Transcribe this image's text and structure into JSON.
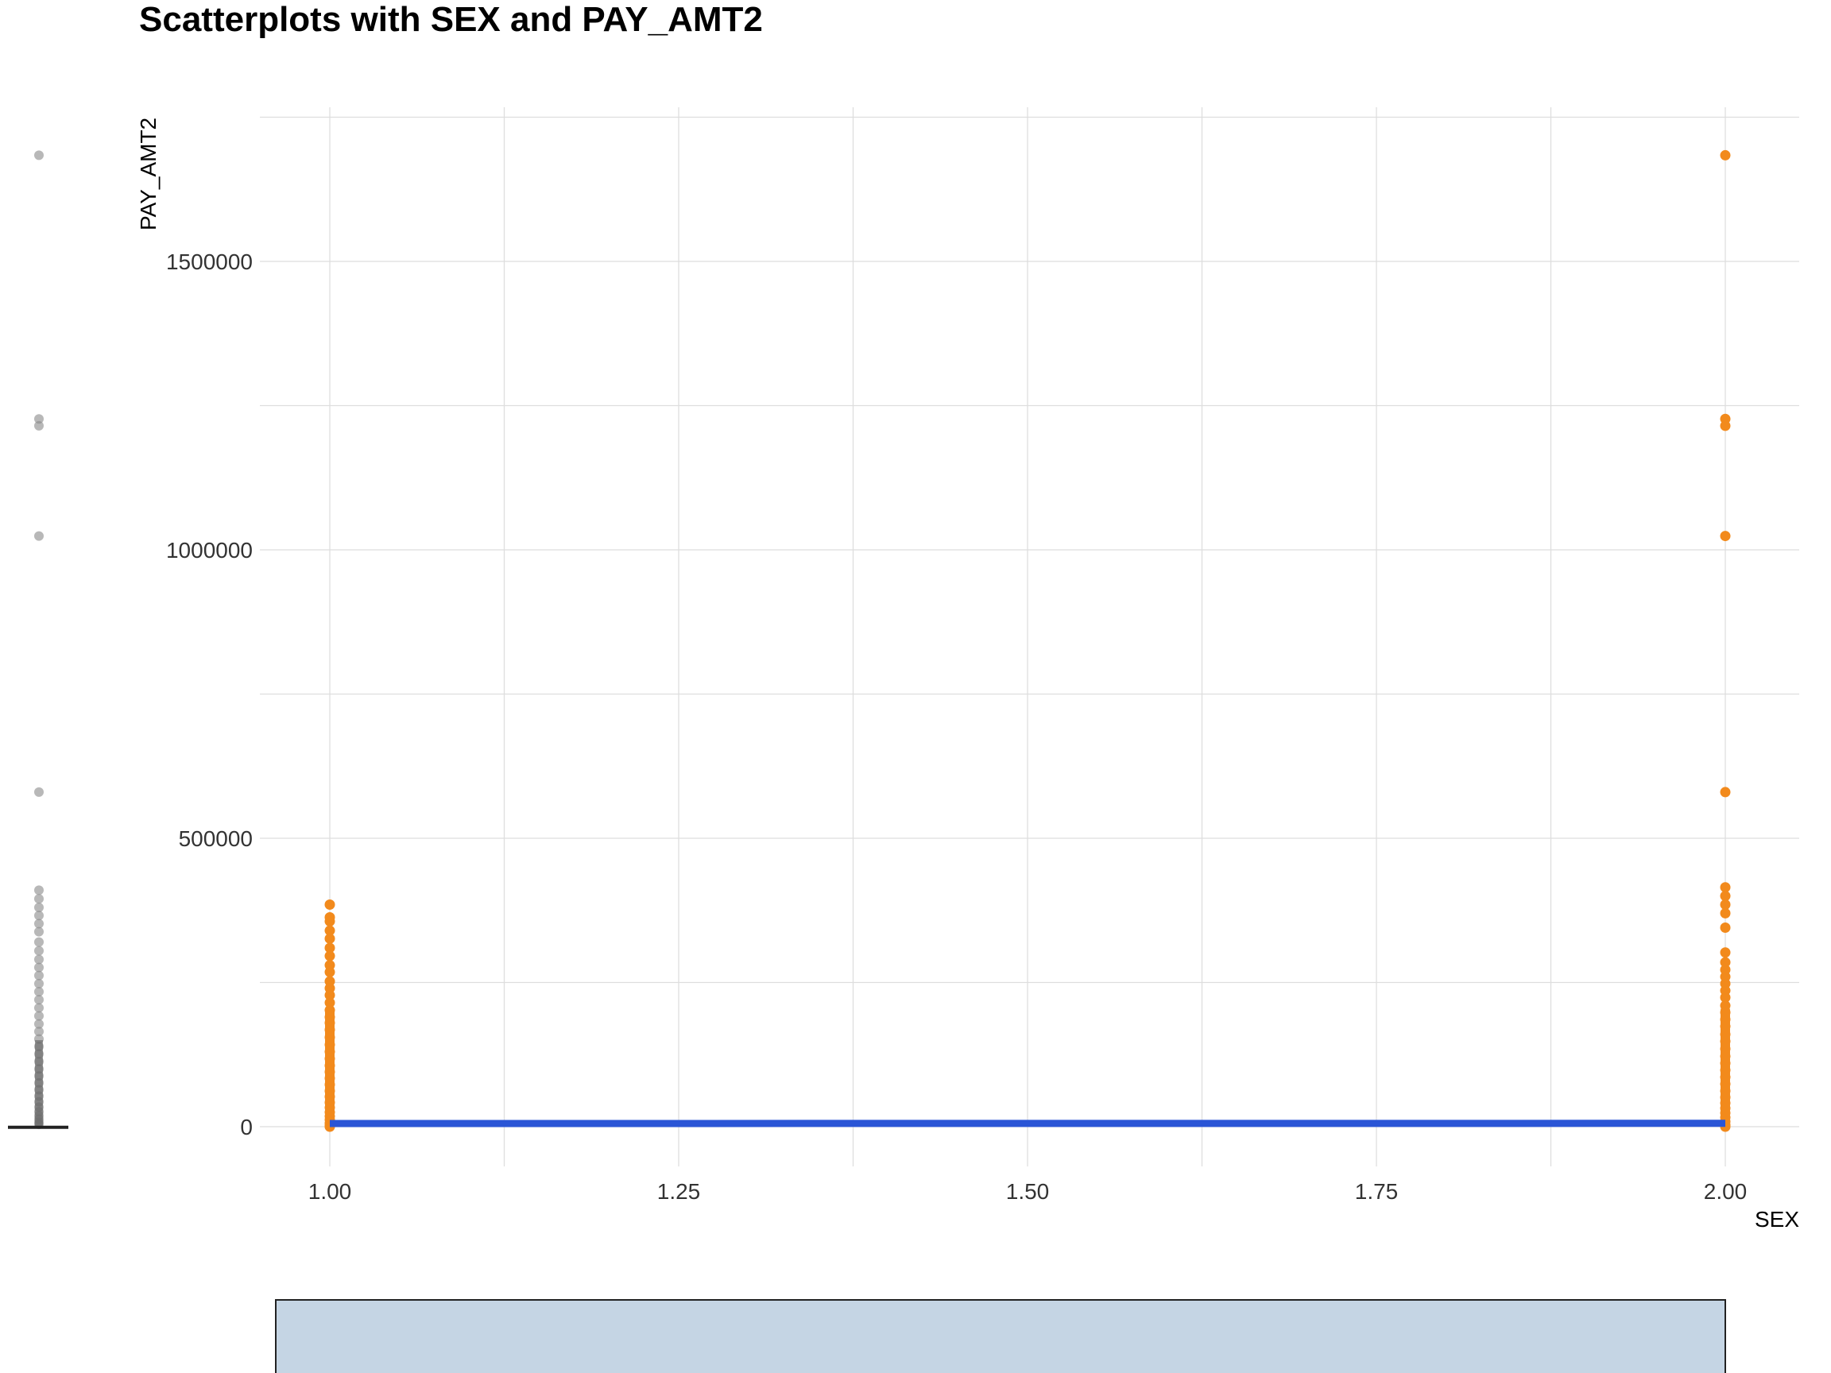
{
  "chart_data": {
    "type": "scatter",
    "title": "Scatterplots with SEX and PAY_AMT2",
    "xlabel": "SEX",
    "ylabel": "PAY_AMT2",
    "xlim": [
      0.9,
      2.1
    ],
    "ylim": [
      -80000,
      1760000
    ],
    "x_ticks": [
      "1.00",
      "1.25",
      "1.50",
      "1.75",
      "2.00"
    ],
    "x_tick_values": [
      1.0,
      1.25,
      1.5,
      1.75,
      2.0
    ],
    "y_ticks": [
      "0",
      "500000",
      "1000000",
      "1500000"
    ],
    "y_tick_values": [
      0,
      500000,
      1000000,
      1500000
    ],
    "grid": true,
    "point_color": "#f28a1c",
    "trend_color": "#2a55d6",
    "boxplot_point_color": "#888888",
    "histogram_color": "#c5d5e4",
    "points": [
      {
        "x": 1,
        "y": 385000
      },
      {
        "x": 1,
        "y": 363000
      },
      {
        "x": 1,
        "y": 356000
      },
      {
        "x": 1,
        "y": 340000
      },
      {
        "x": 1,
        "y": 326000
      },
      {
        "x": 1,
        "y": 310000
      },
      {
        "x": 1,
        "y": 296000
      },
      {
        "x": 1,
        "y": 280000
      },
      {
        "x": 1,
        "y": 268000
      },
      {
        "x": 1,
        "y": 252000
      },
      {
        "x": 1,
        "y": 240000
      },
      {
        "x": 1,
        "y": 228000
      },
      {
        "x": 1,
        "y": 215000
      },
      {
        "x": 1,
        "y": 202000
      },
      {
        "x": 1,
        "y": 190000
      },
      {
        "x": 1,
        "y": 180000
      },
      {
        "x": 1,
        "y": 168000
      },
      {
        "x": 1,
        "y": 155000
      },
      {
        "x": 1,
        "y": 142000
      },
      {
        "x": 1,
        "y": 130000
      },
      {
        "x": 1,
        "y": 118000
      },
      {
        "x": 1,
        "y": 106000
      },
      {
        "x": 1,
        "y": 95000
      },
      {
        "x": 1,
        "y": 84000
      },
      {
        "x": 1,
        "y": 73000
      },
      {
        "x": 1,
        "y": 62000
      },
      {
        "x": 1,
        "y": 52000
      },
      {
        "x": 1,
        "y": 42000
      },
      {
        "x": 1,
        "y": 33000
      },
      {
        "x": 1,
        "y": 25000
      },
      {
        "x": 1,
        "y": 18000
      },
      {
        "x": 1,
        "y": 12000
      },
      {
        "x": 1,
        "y": 6000
      },
      {
        "x": 1,
        "y": 2000
      },
      {
        "x": 1,
        "y": 0
      },
      {
        "x": 2,
        "y": 1684000
      },
      {
        "x": 2,
        "y": 1227000
      },
      {
        "x": 2,
        "y": 1215000
      },
      {
        "x": 2,
        "y": 1024000
      },
      {
        "x": 2,
        "y": 580000
      },
      {
        "x": 2,
        "y": 415000
      },
      {
        "x": 2,
        "y": 400000
      },
      {
        "x": 2,
        "y": 385000
      },
      {
        "x": 2,
        "y": 370000
      },
      {
        "x": 2,
        "y": 345000
      },
      {
        "x": 2,
        "y": 302000
      },
      {
        "x": 2,
        "y": 285000
      },
      {
        "x": 2,
        "y": 272000
      },
      {
        "x": 2,
        "y": 260000
      },
      {
        "x": 2,
        "y": 248000
      },
      {
        "x": 2,
        "y": 236000
      },
      {
        "x": 2,
        "y": 224000
      },
      {
        "x": 2,
        "y": 210000
      },
      {
        "x": 2,
        "y": 198000
      },
      {
        "x": 2,
        "y": 186000
      },
      {
        "x": 2,
        "y": 174000
      },
      {
        "x": 2,
        "y": 160000
      },
      {
        "x": 2,
        "y": 148000
      },
      {
        "x": 2,
        "y": 135000
      },
      {
        "x": 2,
        "y": 122000
      },
      {
        "x": 2,
        "y": 110000
      },
      {
        "x": 2,
        "y": 98000
      },
      {
        "x": 2,
        "y": 86000
      },
      {
        "x": 2,
        "y": 74000
      },
      {
        "x": 2,
        "y": 62000
      },
      {
        "x": 2,
        "y": 51000
      },
      {
        "x": 2,
        "y": 41000
      },
      {
        "x": 2,
        "y": 32000
      },
      {
        "x": 2,
        "y": 24000
      },
      {
        "x": 2,
        "y": 16000
      },
      {
        "x": 2,
        "y": 9000
      },
      {
        "x": 2,
        "y": 3000
      },
      {
        "x": 2,
        "y": 0
      }
    ],
    "trend_line": [
      {
        "x": 1,
        "y": 5500
      },
      {
        "x": 2,
        "y": 5800
      }
    ],
    "boxplot_outliers": [
      1684000,
      1227000,
      1215000,
      1024000,
      580000,
      410000,
      395000,
      380000,
      366000,
      352000,
      338000,
      320000,
      305000,
      290000,
      276000,
      262000,
      248000,
      234000,
      220000,
      206000,
      192000,
      178000,
      165000,
      152000,
      139000,
      126000,
      113000,
      100000,
      88000,
      76000,
      64000,
      53000,
      43000,
      34000,
      26000,
      19000,
      13000,
      8000,
      4000
    ],
    "boxplot_median": 1800
  }
}
